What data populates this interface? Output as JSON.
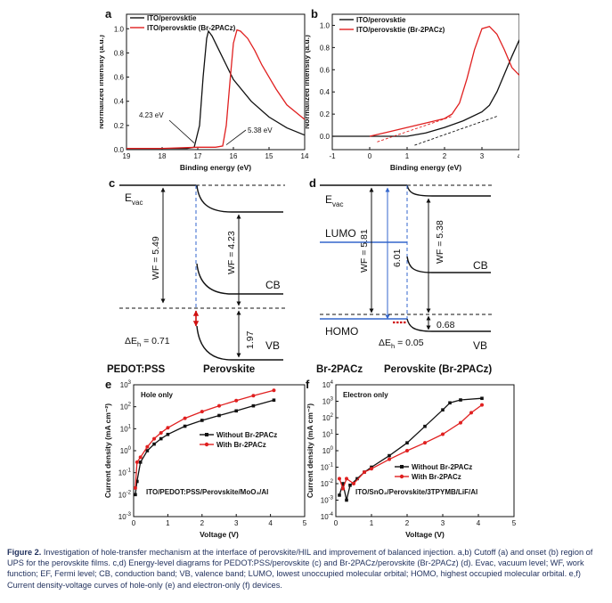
{
  "colors": {
    "black": "#111111",
    "red": "#e02020",
    "blue": "#3366cc",
    "axis": "#111111"
  },
  "chart_data": [
    {
      "id": "a",
      "panel_label": "a",
      "type": "line",
      "xlabel": "Binding energy (eV)",
      "ylabel": "Normalized intensity (a.u.)",
      "xlim": [
        19,
        14
      ],
      "ylim": [
        0,
        1.12
      ],
      "xticks": [
        19,
        18,
        17,
        16,
        15,
        14
      ],
      "yticks": [
        0,
        0.2,
        0.4,
        0.6,
        0.8,
        1.0
      ],
      "yticklabels": [
        "0.0",
        "0.2",
        "0.4",
        "0.6",
        "0.8",
        "1.0"
      ],
      "legend": "top-right",
      "series": [
        {
          "name": "ITO/perovsktie",
          "color": "#111111",
          "x": [
            19.0,
            18.0,
            17.3,
            17.1,
            16.95,
            16.85,
            16.75,
            16.7,
            16.6,
            16.4,
            16.2,
            16.0,
            15.5,
            15.0,
            14.5,
            14.0
          ],
          "y": [
            0.01,
            0.01,
            0.01,
            0.02,
            0.2,
            0.6,
            0.92,
            0.98,
            0.94,
            0.82,
            0.7,
            0.58,
            0.4,
            0.27,
            0.18,
            0.12
          ]
        },
        {
          "name": "ITO/perovsktie (Br-2PACz)",
          "color": "#e02020",
          "x": [
            19.0,
            18.0,
            17.0,
            16.5,
            16.3,
            16.2,
            16.1,
            16.0,
            15.9,
            15.8,
            15.6,
            15.4,
            15.2,
            15.0,
            14.8,
            14.5,
            14.0
          ],
          "y": [
            0.01,
            0.01,
            0.02,
            0.02,
            0.03,
            0.2,
            0.55,
            0.88,
            0.99,
            0.98,
            0.92,
            0.82,
            0.7,
            0.6,
            0.5,
            0.37,
            0.25
          ]
        }
      ],
      "annotations": [
        "4.23 eV",
        "5.38 eV"
      ]
    },
    {
      "id": "b",
      "panel_label": "b",
      "type": "line",
      "xlabel": "Binding energy (eV)",
      "ylabel": "Normalized intensity (a.u.)",
      "xlim": [
        -1,
        4
      ],
      "ylim": [
        -0.12,
        1.1
      ],
      "xticks": [
        -1,
        0,
        1,
        2,
        3,
        4
      ],
      "yticks": [
        0,
        0.2,
        0.4,
        0.6,
        0.8,
        1.0
      ],
      "yticklabels": [
        "0.0",
        "0.2",
        "0.4",
        "0.6",
        "0.8",
        "1.0"
      ],
      "legend": "top-left",
      "series": [
        {
          "name": "ITO/perovsktie",
          "color": "#111111",
          "x": [
            -1.0,
            0.0,
            1.0,
            1.5,
            2.0,
            2.5,
            3.0,
            3.2,
            3.4,
            3.6,
            3.8,
            4.0
          ],
          "y": [
            0.0,
            0.0,
            0.0,
            0.03,
            0.08,
            0.14,
            0.22,
            0.28,
            0.4,
            0.56,
            0.72,
            0.87
          ]
        },
        {
          "name": "ITO/perovsktie (Br-2PACz)",
          "color": "#e02020",
          "x": [
            0.0,
            0.5,
            1.0,
            1.5,
            2.0,
            2.2,
            2.4,
            2.6,
            2.8,
            3.0,
            3.2,
            3.4,
            3.6,
            3.8,
            4.0
          ],
          "y": [
            0.0,
            0.04,
            0.08,
            0.12,
            0.16,
            0.2,
            0.3,
            0.52,
            0.78,
            0.97,
            0.99,
            0.92,
            0.78,
            0.62,
            0.55
          ]
        }
      ]
    },
    {
      "id": "e",
      "panel_label": "e",
      "type": "line",
      "xlabel": "Voltage (V)",
      "ylabel": "Current density (mA cm⁻²)",
      "xlim": [
        0,
        5
      ],
      "ylim_log10": [
        -3,
        3
      ],
      "yscale": "log",
      "xticks": [
        0,
        1,
        2,
        3,
        4,
        5
      ],
      "ytick_exponents": [
        -3,
        -2,
        -1,
        0,
        1,
        2,
        3
      ],
      "ytick_labels": [
        "0.001",
        "0.01",
        "0.1",
        "1",
        "10",
        "100",
        "1000"
      ],
      "legend": "center-right",
      "panel_note": "Hole only",
      "device": "ITO/PEDOT:PSS/Perovskite/MoO₃/Al",
      "series": [
        {
          "name": "Without Br-2PACz",
          "color": "#111111",
          "x": [
            0.05,
            0.1,
            0.2,
            0.4,
            0.6,
            0.8,
            1.0,
            1.5,
            2.0,
            2.5,
            3.0,
            3.5,
            4.1
          ],
          "y": [
            0.01,
            0.04,
            0.3,
            1.0,
            2.0,
            3.5,
            5.5,
            13,
            24,
            40,
            65,
            110,
            200
          ]
        },
        {
          "name": "With Br-2PACz",
          "color": "#e02020",
          "x": [
            0.05,
            0.1,
            0.2,
            0.4,
            0.6,
            0.8,
            1.0,
            1.5,
            2.0,
            2.5,
            3.0,
            3.5,
            4.1
          ],
          "y": [
            0.02,
            0.3,
            0.5,
            1.5,
            3.5,
            6.5,
            11,
            30,
            60,
            110,
            190,
            320,
            560
          ]
        }
      ]
    },
    {
      "id": "f",
      "panel_label": "f",
      "type": "line",
      "xlabel": "Voltage (V)",
      "ylabel": "Current density (mA cm⁻²)",
      "xlim": [
        0,
        5
      ],
      "ylim_log10": [
        -4,
        4
      ],
      "yscale": "log",
      "xticks": [
        0,
        1,
        2,
        3,
        4,
        5
      ],
      "ytick_exponents": [
        -4,
        -3,
        -2,
        -1,
        0,
        1,
        2,
        3,
        4
      ],
      "ytick_labels": [
        "0.0001",
        "0.001",
        "0.01",
        "0.1",
        "1",
        "10",
        "100",
        "1000",
        "10000"
      ],
      "legend": "center-right",
      "panel_note": "Electron only",
      "device": "ITO/SnO₂/Perovskite/3TPYMB/LiF/Al",
      "series": [
        {
          "name": "Without Br-2PACz",
          "color": "#111111",
          "x": [
            0.1,
            0.2,
            0.3,
            0.4,
            0.6,
            0.8,
            1.0,
            1.5,
            2.0,
            2.5,
            3.0,
            3.2,
            3.5,
            4.1
          ],
          "y": [
            0.002,
            0.01,
            0.001,
            0.008,
            0.02,
            0.05,
            0.1,
            0.5,
            3,
            30,
            300,
            800,
            1200,
            1500
          ]
        },
        {
          "name": "With Br-2PACz",
          "color": "#e02020",
          "x": [
            0.1,
            0.2,
            0.3,
            0.5,
            0.8,
            1.0,
            1.5,
            2.0,
            2.5,
            3.0,
            3.5,
            3.8,
            4.1
          ],
          "y": [
            0.02,
            0.005,
            0.02,
            0.01,
            0.05,
            0.08,
            0.3,
            1.0,
            3,
            10,
            50,
            200,
            600
          ]
        }
      ]
    }
  ],
  "diagram_c": {
    "panel_label": "c",
    "evac": "E",
    "evac_sub": "vac",
    "wf": "WF = 5.49",
    "wf_pvk": "WF = 4.23",
    "vb_gap": "1.97",
    "cb": "CB",
    "vb": "VB",
    "delta": "ΔE",
    "delta_sub": "h",
    "delta_val": " = 0.71",
    "left_material": "PEDOT:PSS",
    "right_material": "Perovskite"
  },
  "diagram_d": {
    "panel_label": "d",
    "evac": "E",
    "evac_sub": "vac",
    "lumo": "LUMO",
    "homo": "HOMO",
    "wf": "WF = 5.81",
    "gap": "6.01",
    "wf_pvk": "WF = 5.38",
    "vb_gap": "0.68",
    "cb": "CB",
    "vb": "VB",
    "delta": "ΔE",
    "delta_sub": "h",
    "delta_val": " = 0.05",
    "left_material": "Br-2PACz",
    "right_material": "Perovskite (Br-2PACz)"
  },
  "caption": {
    "label": "Figure 2.",
    "text": "Investigation of hole-transfer mechanism at the interface of perovskite/HIL and improvement of balanced injection. a,b) Cutoff (a) and onset (b) region of UPS for the perovskite films. c,d) Energy-level diagrams for PEDOT:PSS/perovskite (c) and Br-2PACz/perovskite (Br-2PACz) (d). Evac, vacuum level; WF, work function; EF, Fermi level; CB, conduction band; VB, valence band; LUMO, lowest unoccupied molecular orbital; HOMO, highest occupied molecular orbital. e,f) Current density-voltage curves of hole-only (e) and electron-only (f) devices."
  }
}
